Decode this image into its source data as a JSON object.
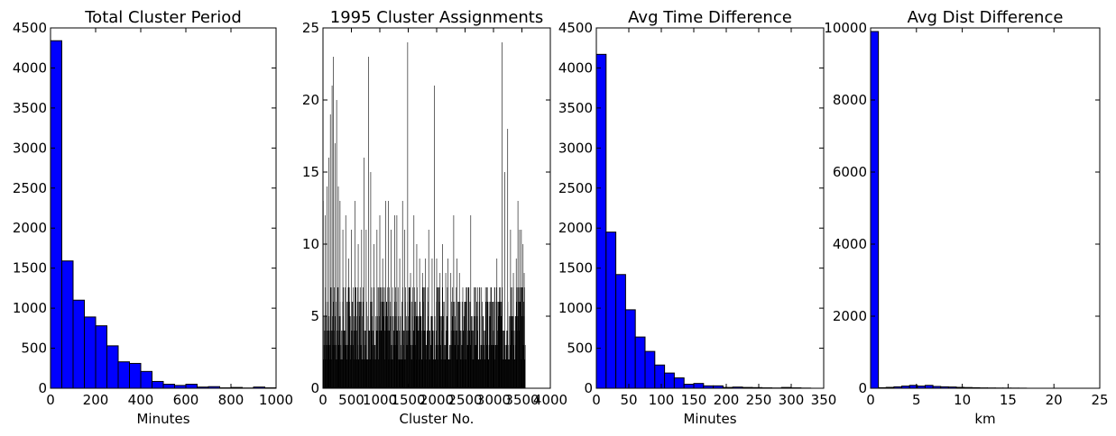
{
  "chart_data": [
    {
      "type": "bar",
      "title": "Total Cluster Period",
      "xlabel": "Minutes",
      "ylabel": "",
      "xlim": [
        0,
        1000
      ],
      "ylim": [
        0,
        4500
      ],
      "xticks": [
        0,
        200,
        400,
        600,
        800,
        1000
      ],
      "yticks": [
        0,
        500,
        1000,
        1500,
        2000,
        2500,
        3000,
        3500,
        4000,
        4500
      ],
      "bin_width": 50,
      "bins_start": 0,
      "values": [
        4340,
        1590,
        1100,
        890,
        780,
        530,
        330,
        310,
        210,
        85,
        50,
        35,
        50,
        15,
        20,
        5,
        10,
        3,
        15,
        5
      ]
    },
    {
      "type": "bar",
      "title": "1995 Cluster Assignments",
      "xlabel": "Cluster No.",
      "ylabel": "",
      "xlim": [
        0,
        4000
      ],
      "ylim": [
        0,
        25
      ],
      "xticks": [
        0,
        500,
        1000,
        1500,
        2000,
        2500,
        3000,
        3500,
        4000
      ],
      "yticks": [
        0,
        5,
        10,
        15,
        20,
        25
      ],
      "spikes": [
        [
          5,
          13
        ],
        [
          40,
          12
        ],
        [
          70,
          14
        ],
        [
          100,
          16
        ],
        [
          130,
          19
        ],
        [
          160,
          21
        ],
        [
          185,
          23
        ],
        [
          210,
          17
        ],
        [
          240,
          20
        ],
        [
          270,
          14
        ],
        [
          300,
          13
        ],
        [
          350,
          11
        ],
        [
          400,
          12
        ],
        [
          450,
          9
        ],
        [
          500,
          11
        ],
        [
          560,
          13
        ],
        [
          620,
          10
        ],
        [
          680,
          11
        ],
        [
          720,
          16
        ],
        [
          760,
          11
        ],
        [
          800,
          23
        ],
        [
          840,
          15
        ],
        [
          900,
          10
        ],
        [
          950,
          11
        ],
        [
          1000,
          12
        ],
        [
          1050,
          9
        ],
        [
          1100,
          13
        ],
        [
          1150,
          13
        ],
        [
          1200,
          11
        ],
        [
          1260,
          12
        ],
        [
          1300,
          12
        ],
        [
          1350,
          9
        ],
        [
          1400,
          13
        ],
        [
          1440,
          11
        ],
        [
          1490,
          24
        ],
        [
          1540,
          8
        ],
        [
          1600,
          12
        ],
        [
          1650,
          10
        ],
        [
          1700,
          9
        ],
        [
          1750,
          8
        ],
        [
          1800,
          9
        ],
        [
          1860,
          11
        ],
        [
          1920,
          9
        ],
        [
          1960,
          21
        ],
        [
          2000,
          9
        ],
        [
          2060,
          8
        ],
        [
          2100,
          10
        ],
        [
          2160,
          8
        ],
        [
          2200,
          9
        ],
        [
          2250,
          8
        ],
        [
          2300,
          12
        ],
        [
          2360,
          9
        ],
        [
          2400,
          8
        ],
        [
          2460,
          7
        ],
        [
          2500,
          6
        ],
        [
          2560,
          7
        ],
        [
          2600,
          12
        ],
        [
          2660,
          7
        ],
        [
          2700,
          6
        ],
        [
          2760,
          7
        ],
        [
          2800,
          6
        ],
        [
          2860,
          7
        ],
        [
          2900,
          6
        ],
        [
          2960,
          7
        ],
        [
          3000,
          6
        ],
        [
          3060,
          9
        ],
        [
          3100,
          7
        ],
        [
          3150,
          24
        ],
        [
          3200,
          15
        ],
        [
          3250,
          18
        ],
        [
          3300,
          11
        ],
        [
          3350,
          8
        ],
        [
          3400,
          9
        ],
        [
          3430,
          13
        ],
        [
          3460,
          11
        ],
        [
          3490,
          11
        ],
        [
          3520,
          10
        ],
        [
          3540,
          8
        ]
      ],
      "baseline_max": 3560
    },
    {
      "type": "bar",
      "title": "Avg Time Difference",
      "xlabel": "Minutes",
      "ylabel": "",
      "xlim": [
        0,
        350
      ],
      "ylim": [
        0,
        4500
      ],
      "xticks": [
        0,
        50,
        100,
        150,
        200,
        250,
        300,
        350
      ],
      "yticks": [
        0,
        500,
        1000,
        1500,
        2000,
        2500,
        3000,
        3500,
        4000,
        4500
      ],
      "bin_width": 15,
      "bins_start": 0,
      "values": [
        4170,
        1950,
        1420,
        980,
        640,
        460,
        290,
        190,
        130,
        50,
        60,
        30,
        30,
        10,
        15,
        10,
        8,
        5,
        3,
        10,
        5,
        2
      ]
    },
    {
      "type": "bar",
      "title": "Avg Dist Difference",
      "xlabel": "km",
      "ylabel": "",
      "xlim": [
        0,
        25
      ],
      "ylim": [
        0,
        10000
      ],
      "xticks": [
        0,
        5,
        10,
        15,
        20,
        25
      ],
      "yticks": [
        0,
        2000,
        4000,
        6000,
        8000,
        10000
      ],
      "bin_width": 0.85,
      "bins_start": 0,
      "values": [
        9900,
        15,
        25,
        40,
        60,
        80,
        60,
        80,
        50,
        40,
        35,
        25,
        20,
        15,
        10,
        8,
        6,
        5,
        4,
        3
      ]
    }
  ]
}
